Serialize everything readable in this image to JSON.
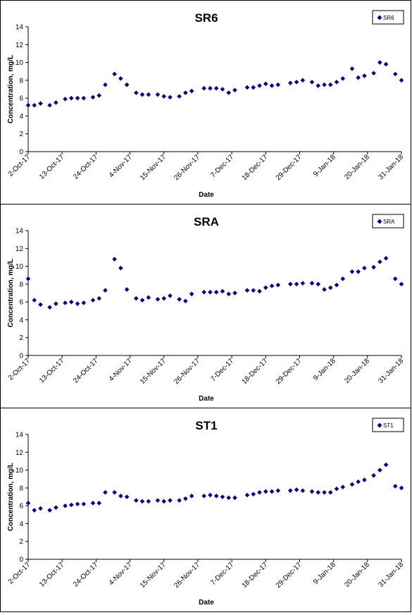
{
  "chart_data": [
    {
      "type": "scatter",
      "title": "SR6",
      "xlabel": "Date",
      "ylabel": "Concentration, mg/L",
      "ylim": [
        0,
        14
      ],
      "yticks": [
        0,
        2,
        4,
        6,
        8,
        10,
        12,
        14
      ],
      "xlim": [
        "2017-10-02",
        "2018-01-31"
      ],
      "xticks": [
        "2-Oct-17",
        "13-Oct-17",
        "24-Oct-17",
        "4-Nov-17",
        "15-Nov-17",
        "26-Nov-17",
        "7-Dec-17",
        "18-Dec-17",
        "29-Dec-17",
        "9-Jan-18",
        "20-Jan-18",
        "31-Jan-18"
      ],
      "legend": "top-right",
      "grid": false,
      "series": [
        {
          "name": "SR6",
          "color": "#000080",
          "points": [
            [
              "2017-10-02",
              5.2
            ],
            [
              "2017-10-04",
              5.2
            ],
            [
              "2017-10-06",
              5.4
            ],
            [
              "2017-10-09",
              5.2
            ],
            [
              "2017-10-11",
              5.5
            ],
            [
              "2017-10-14",
              5.9
            ],
            [
              "2017-10-16",
              6.0
            ],
            [
              "2017-10-18",
              6.0
            ],
            [
              "2017-10-20",
              6.0
            ],
            [
              "2017-10-23",
              6.1
            ],
            [
              "2017-10-25",
              6.3
            ],
            [
              "2017-10-27",
              7.5
            ],
            [
              "2017-10-30",
              8.7
            ],
            [
              "2017-11-01",
              8.2
            ],
            [
              "2017-11-03",
              7.5
            ],
            [
              "2017-11-06",
              6.6
            ],
            [
              "2017-11-08",
              6.4
            ],
            [
              "2017-11-10",
              6.4
            ],
            [
              "2017-11-13",
              6.4
            ],
            [
              "2017-11-15",
              6.2
            ],
            [
              "2017-11-17",
              6.1
            ],
            [
              "2017-11-20",
              6.2
            ],
            [
              "2017-11-22",
              6.6
            ],
            [
              "2017-11-24",
              6.8
            ],
            [
              "2017-11-28",
              7.1
            ],
            [
              "2017-11-30",
              7.1
            ],
            [
              "2017-12-02",
              7.1
            ],
            [
              "2017-12-04",
              7.0
            ],
            [
              "2017-12-06",
              6.6
            ],
            [
              "2017-12-08",
              6.9
            ],
            [
              "2017-12-12",
              7.2
            ],
            [
              "2017-12-14",
              7.2
            ],
            [
              "2017-12-16",
              7.4
            ],
            [
              "2017-12-18",
              7.6
            ],
            [
              "2017-12-20",
              7.4
            ],
            [
              "2017-12-22",
              7.5
            ],
            [
              "2017-12-26",
              7.7
            ],
            [
              "2017-12-28",
              7.8
            ],
            [
              "2017-12-30",
              8.0
            ],
            [
              "2018-01-02",
              7.8
            ],
            [
              "2018-01-04",
              7.4
            ],
            [
              "2018-01-06",
              7.5
            ],
            [
              "2018-01-08",
              7.5
            ],
            [
              "2018-01-10",
              7.8
            ],
            [
              "2018-01-12",
              8.2
            ],
            [
              "2018-01-15",
              9.3
            ],
            [
              "2018-01-17",
              8.3
            ],
            [
              "2018-01-19",
              8.5
            ],
            [
              "2018-01-22",
              8.8
            ],
            [
              "2018-01-24",
              10.0
            ],
            [
              "2018-01-26",
              9.8
            ],
            [
              "2018-01-29",
              8.7
            ],
            [
              "2018-01-31",
              8.0
            ]
          ]
        }
      ]
    },
    {
      "type": "scatter",
      "title": "SRA",
      "xlabel": "Date",
      "ylabel": "Concentration, mg/L",
      "ylim": [
        0,
        14
      ],
      "yticks": [
        0,
        2,
        4,
        6,
        8,
        10,
        12,
        14
      ],
      "xlim": [
        "2017-10-02",
        "2018-01-31"
      ],
      "xticks": [
        "2-Oct-17",
        "13-Oct-17",
        "24-Oct-17",
        "4-Nov-17",
        "15-Nov-17",
        "26-Nov-17",
        "7-Dec-17",
        "18-Dec-17",
        "29-Dec-17",
        "9-Jan-18",
        "20-Jan-18",
        "31-Jan-18"
      ],
      "legend": "top-right",
      "grid": false,
      "series": [
        {
          "name": "SRA",
          "color": "#000080",
          "points": [
            [
              "2017-10-02",
              8.6
            ],
            [
              "2017-10-04",
              6.2
            ],
            [
              "2017-10-06",
              5.7
            ],
            [
              "2017-10-09",
              5.4
            ],
            [
              "2017-10-11",
              5.8
            ],
            [
              "2017-10-14",
              5.9
            ],
            [
              "2017-10-16",
              6.0
            ],
            [
              "2017-10-18",
              5.8
            ],
            [
              "2017-10-20",
              5.9
            ],
            [
              "2017-10-23",
              6.2
            ],
            [
              "2017-10-25",
              6.4
            ],
            [
              "2017-10-27",
              7.3
            ],
            [
              "2017-10-30",
              10.8
            ],
            [
              "2017-11-01",
              9.8
            ],
            [
              "2017-11-03",
              7.4
            ],
            [
              "2017-11-06",
              6.4
            ],
            [
              "2017-11-08",
              6.2
            ],
            [
              "2017-11-10",
              6.5
            ],
            [
              "2017-11-13",
              6.3
            ],
            [
              "2017-11-15",
              6.4
            ],
            [
              "2017-11-17",
              6.7
            ],
            [
              "2017-11-20",
              6.3
            ],
            [
              "2017-11-22",
              6.1
            ],
            [
              "2017-11-24",
              6.9
            ],
            [
              "2017-11-28",
              7.1
            ],
            [
              "2017-11-30",
              7.1
            ],
            [
              "2017-12-02",
              7.1
            ],
            [
              "2017-12-04",
              7.2
            ],
            [
              "2017-12-06",
              6.9
            ],
            [
              "2017-12-08",
              7.0
            ],
            [
              "2017-12-12",
              7.3
            ],
            [
              "2017-12-14",
              7.3
            ],
            [
              "2017-12-16",
              7.2
            ],
            [
              "2017-12-18",
              7.6
            ],
            [
              "2017-12-20",
              7.8
            ],
            [
              "2017-12-22",
              7.9
            ],
            [
              "2017-12-26",
              8.0
            ],
            [
              "2017-12-28",
              8.0
            ],
            [
              "2017-12-30",
              8.1
            ],
            [
              "2018-01-02",
              8.1
            ],
            [
              "2018-01-04",
              8.0
            ],
            [
              "2018-01-06",
              7.4
            ],
            [
              "2018-01-08",
              7.6
            ],
            [
              "2018-01-10",
              7.9
            ],
            [
              "2018-01-12",
              8.6
            ],
            [
              "2018-01-15",
              9.4
            ],
            [
              "2018-01-17",
              9.4
            ],
            [
              "2018-01-19",
              9.8
            ],
            [
              "2018-01-22",
              9.9
            ],
            [
              "2018-01-24",
              10.5
            ],
            [
              "2018-01-26",
              10.9
            ],
            [
              "2018-01-29",
              8.6
            ],
            [
              "2018-01-31",
              8.0
            ]
          ]
        }
      ]
    },
    {
      "type": "scatter",
      "title": "ST1",
      "xlabel": "Date",
      "ylabel": "Concentration, mg/L",
      "ylim": [
        0,
        14
      ],
      "yticks": [
        0,
        2,
        4,
        6,
        8,
        10,
        12,
        14
      ],
      "xlim": [
        "2017-10-02",
        "2018-01-31"
      ],
      "xticks": [
        "2-Oct-17",
        "13-Oct-17",
        "24-Oct-17",
        "4-Nov-17",
        "15-Nov-17",
        "26-Nov-17",
        "7-Dec-17",
        "18-Dec-17",
        "29-Dec-17",
        "9-Jan-18",
        "20-Jan-18",
        "31-Jan-18"
      ],
      "legend": "top-right",
      "grid": false,
      "series": [
        {
          "name": "ST1",
          "color": "#000080",
          "points": [
            [
              "2017-10-02",
              6.3
            ],
            [
              "2017-10-04",
              5.5
            ],
            [
              "2017-10-06",
              5.7
            ],
            [
              "2017-10-09",
              5.5
            ],
            [
              "2017-10-11",
              5.8
            ],
            [
              "2017-10-14",
              6.0
            ],
            [
              "2017-10-16",
              6.1
            ],
            [
              "2017-10-18",
              6.2
            ],
            [
              "2017-10-20",
              6.2
            ],
            [
              "2017-10-23",
              6.3
            ],
            [
              "2017-10-25",
              6.3
            ],
            [
              "2017-10-27",
              7.5
            ],
            [
              "2017-10-30",
              7.5
            ],
            [
              "2017-11-01",
              7.1
            ],
            [
              "2017-11-03",
              7.0
            ],
            [
              "2017-11-06",
              6.6
            ],
            [
              "2017-11-08",
              6.5
            ],
            [
              "2017-11-10",
              6.5
            ],
            [
              "2017-11-13",
              6.6
            ],
            [
              "2017-11-15",
              6.5
            ],
            [
              "2017-11-17",
              6.6
            ],
            [
              "2017-11-20",
              6.6
            ],
            [
              "2017-11-22",
              6.8
            ],
            [
              "2017-11-24",
              7.1
            ],
            [
              "2017-11-28",
              7.1
            ],
            [
              "2017-11-30",
              7.2
            ],
            [
              "2017-12-02",
              7.1
            ],
            [
              "2017-12-04",
              7.0
            ],
            [
              "2017-12-06",
              6.9
            ],
            [
              "2017-12-08",
              6.9
            ],
            [
              "2017-12-12",
              7.2
            ],
            [
              "2017-12-14",
              7.3
            ],
            [
              "2017-12-16",
              7.5
            ],
            [
              "2017-12-18",
              7.6
            ],
            [
              "2017-12-20",
              7.6
            ],
            [
              "2017-12-22",
              7.7
            ],
            [
              "2017-12-26",
              7.7
            ],
            [
              "2017-12-28",
              7.8
            ],
            [
              "2017-12-30",
              7.7
            ],
            [
              "2018-01-02",
              7.6
            ],
            [
              "2018-01-04",
              7.5
            ],
            [
              "2018-01-06",
              7.5
            ],
            [
              "2018-01-08",
              7.5
            ],
            [
              "2018-01-10",
              7.9
            ],
            [
              "2018-01-12",
              8.1
            ],
            [
              "2018-01-15",
              8.4
            ],
            [
              "2018-01-17",
              8.7
            ],
            [
              "2018-01-19",
              8.9
            ],
            [
              "2018-01-22",
              9.4
            ],
            [
              "2018-01-24",
              10.0
            ],
            [
              "2018-01-26",
              10.6
            ],
            [
              "2018-01-29",
              8.2
            ],
            [
              "2018-01-31",
              8.0
            ]
          ]
        }
      ]
    }
  ]
}
